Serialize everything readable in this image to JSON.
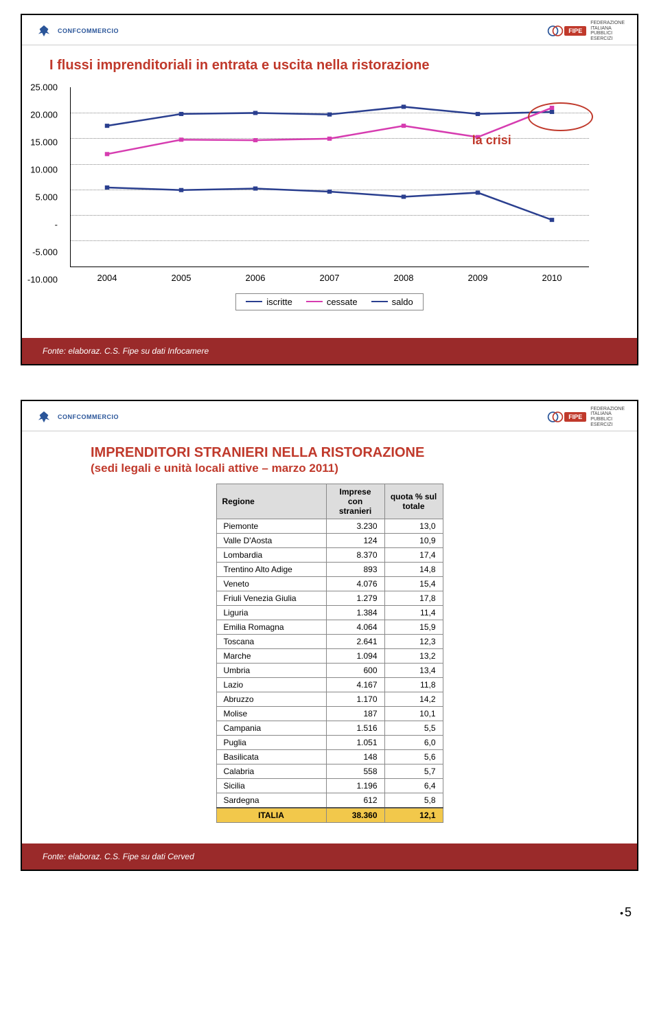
{
  "logos": {
    "left_text": "CONFCOMMERCIO",
    "right_brand": "FIPE",
    "right_lines": [
      "FEDERAZIONE",
      "ITALIANA",
      "PUBBLICI",
      "ESERCIZI"
    ]
  },
  "slide1": {
    "title": "I flussi imprenditoriali in entrata e uscita nella ristorazione",
    "annotation": "la crisi",
    "chart": {
      "type": "line",
      "y_ticks": [
        "25.000",
        "20.000",
        "15.000",
        "10.000",
        "5.000",
        "-",
        "-5.000",
        "-10.000"
      ],
      "y_range": [
        -10000,
        25000
      ],
      "x_labels": [
        "2004",
        "2005",
        "2006",
        "2007",
        "2008",
        "2009",
        "2010"
      ],
      "series": [
        {
          "name": "iscritte",
          "color": "#2a3f8f",
          "values": [
            17500,
            19800,
            20000,
            19700,
            21200,
            19800,
            20200
          ]
        },
        {
          "name": "cessate",
          "color": "#d63cb0",
          "values": [
            12000,
            14800,
            14700,
            15000,
            17500,
            15300,
            21000
          ]
        },
        {
          "name": "saldo",
          "color": "#2a3f8f",
          "values": [
            5500,
            5000,
            5300,
            4700,
            3700,
            4500,
            -800
          ]
        }
      ],
      "grid_color": "#888888",
      "crisis_marker": {
        "x_index_start": 5,
        "x_index_end": 6,
        "stroke": "#c0392b"
      }
    },
    "legend": [
      "iscritte",
      "cessate",
      "saldo"
    ],
    "source": "Fonte: elaboraz. C.S. Fipe su dati Infocamere"
  },
  "slide2": {
    "title": "IMPRENDITORI STRANIERI NELLA RISTORAZIONE",
    "subtitle": "(sedi legali e unità locali attive – marzo 2011)",
    "table": {
      "columns": [
        "Regione",
        "Imprese con stranieri",
        "quota % sul totale"
      ],
      "rows": [
        [
          "Piemonte",
          "3.230",
          "13,0"
        ],
        [
          "Valle D'Aosta",
          "124",
          "10,9"
        ],
        [
          "Lombardia",
          "8.370",
          "17,4"
        ],
        [
          "Trentino Alto Adige",
          "893",
          "14,8"
        ],
        [
          "Veneto",
          "4.076",
          "15,4"
        ],
        [
          "Friuli Venezia Giulia",
          "1.279",
          "17,8"
        ],
        [
          "Liguria",
          "1.384",
          "11,4"
        ],
        [
          "Emilia Romagna",
          "4.064",
          "15,9"
        ],
        [
          "Toscana",
          "2.641",
          "12,3"
        ],
        [
          "Marche",
          "1.094",
          "13,2"
        ],
        [
          "Umbria",
          "600",
          "13,4"
        ],
        [
          "Lazio",
          "4.167",
          "11,8"
        ],
        [
          "Abruzzo",
          "1.170",
          "14,2"
        ],
        [
          "Molise",
          "187",
          "10,1"
        ],
        [
          "Campania",
          "1.516",
          "5,5"
        ],
        [
          "Puglia",
          "1.051",
          "6,0"
        ],
        [
          "Basilicata",
          "148",
          "5,6"
        ],
        [
          "Calabria",
          "558",
          "5,7"
        ],
        [
          "Sicilia",
          "1.196",
          "6,4"
        ],
        [
          "Sardegna",
          "612",
          "5,8"
        ]
      ],
      "total": [
        "ITALIA",
        "38.360",
        "12,1"
      ],
      "header_bg": "#dddddd",
      "total_bg": "#f2c84b"
    },
    "source": "Fonte: elaboraz. C.S. Fipe su dati Cerved"
  },
  "page_number": "5"
}
